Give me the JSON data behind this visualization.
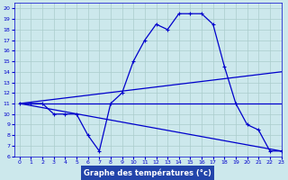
{
  "xlabel": "Graphe des températures (°c)",
  "xlim": [
    -0.5,
    23
  ],
  "ylim": [
    6,
    20.5
  ],
  "xticks": [
    0,
    1,
    2,
    3,
    4,
    5,
    6,
    7,
    8,
    9,
    10,
    11,
    12,
    13,
    14,
    15,
    16,
    17,
    18,
    19,
    20,
    21,
    22,
    23
  ],
  "yticks": [
    6,
    7,
    8,
    9,
    10,
    11,
    12,
    13,
    14,
    15,
    16,
    17,
    18,
    19,
    20
  ],
  "bg_color": "#cce8ec",
  "grid_color": "#aacccc",
  "line_color": "#0000cc",
  "xlabel_bg": "#2244aa",
  "xlabel_fg": "#ffffff",
  "line1_x": [
    0,
    1,
    2,
    3,
    4,
    5,
    6,
    7,
    8,
    9,
    10,
    11,
    12,
    13,
    14,
    15,
    16,
    17,
    18,
    19,
    20,
    21,
    22,
    23
  ],
  "line1_y": [
    11,
    11,
    11,
    10,
    10,
    10,
    8,
    6.5,
    11,
    12,
    15,
    17,
    18.5,
    18,
    19.5,
    19.5,
    19.5,
    18.5,
    14.5,
    11,
    9,
    8.5,
    6.5,
    6.5
  ],
  "line2_x": [
    0,
    23
  ],
  "line2_y": [
    11,
    6.5
  ],
  "line3_x": [
    0,
    23
  ],
  "line3_y": [
    11,
    11
  ],
  "line4_x": [
    0,
    23
  ],
  "line4_y": [
    11,
    14
  ]
}
